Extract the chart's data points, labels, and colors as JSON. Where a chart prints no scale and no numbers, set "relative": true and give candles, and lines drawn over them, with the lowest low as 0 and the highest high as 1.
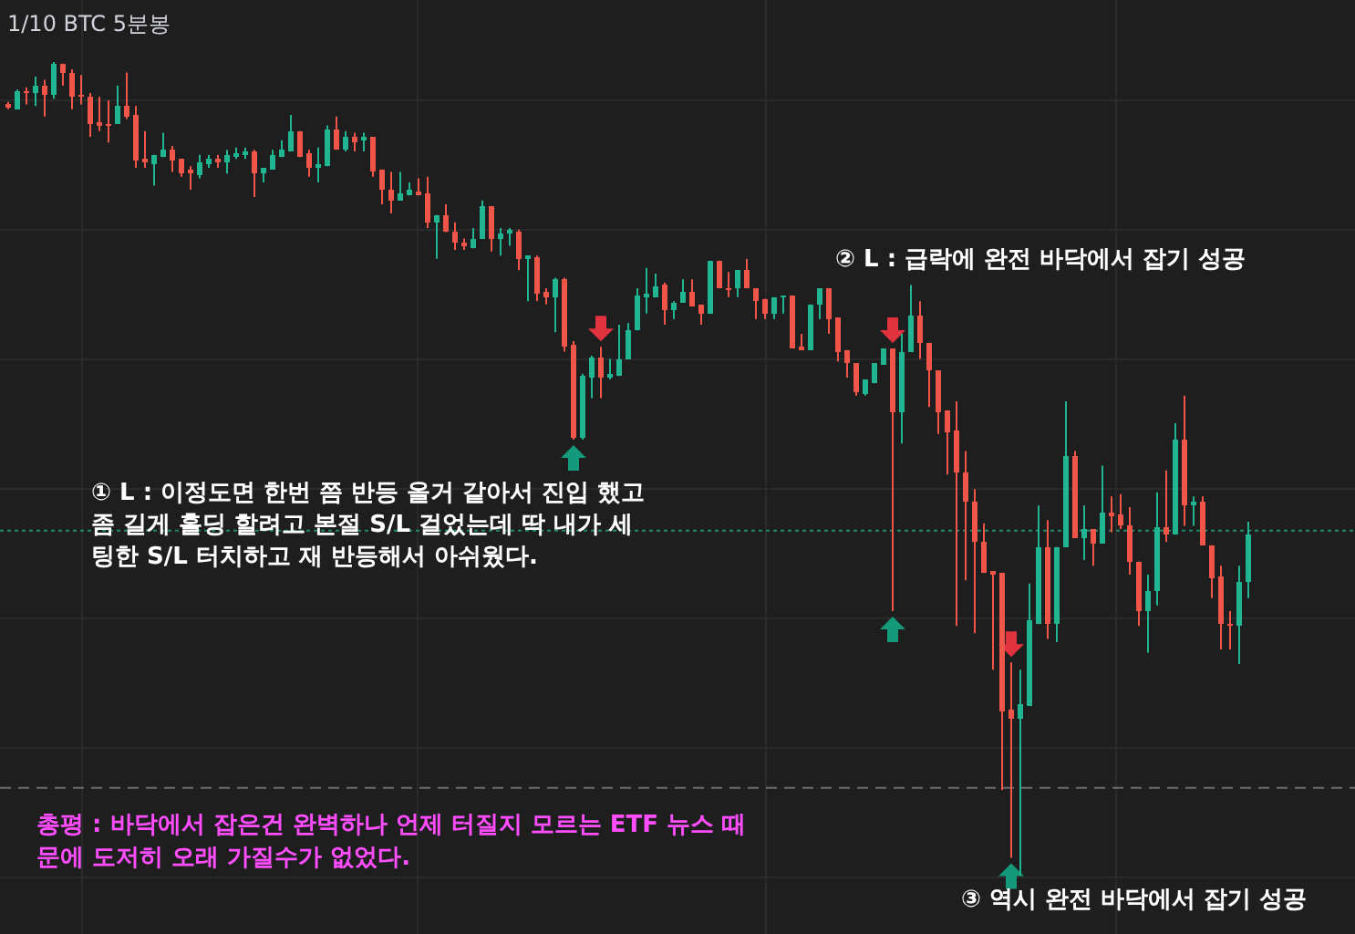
{
  "chart_data": {
    "type": "candlestick",
    "title": "1/10 BTC 5분봉",
    "relative": true,
    "grid": true,
    "annotations": [
      "② L : 급락에 완전 바닥에서 잡기 성공",
      "① L : 이정도면 한번 쯤 반등 올거 같아서 진입 했고\n좀 길게 홀딩 할려고 본절 S/L 걸었는데 딱 내가 세\n팅한 S/L 터치하고 재 반등해서 아쉬웠다.",
      "③ 역시 완전 바닥에서 잡기 성공",
      "총평 : 바닥에서 잡은건 완벽하나 언제 터질지 모르는 ETF 뉴스 때\n문에 도저히 오래 가질수가 없었다."
    ],
    "ref_lines": [
      {
        "axis": "y",
        "value": 0.424,
        "color": "#1e8a6e",
        "line_style": "dotted"
      },
      {
        "axis": "y",
        "value": 0.108,
        "color": "#6b6b6b",
        "line_style": "dashed"
      }
    ],
    "categories": [
      null,
      null,
      null,
      null,
      null,
      null,
      null,
      null,
      null,
      null,
      null,
      null,
      null,
      null,
      null,
      null,
      null,
      null,
      null,
      null,
      null,
      null,
      null,
      null,
      null,
      null,
      null,
      null,
      null,
      null,
      null,
      null,
      null,
      null,
      null,
      null,
      null,
      null,
      null,
      null,
      null,
      null,
      null,
      null,
      null,
      null,
      null,
      null,
      null,
      null,
      null,
      null,
      null,
      null,
      null,
      null,
      null,
      null,
      null,
      null,
      null,
      null,
      null,
      null,
      null,
      null,
      null,
      null,
      null,
      null,
      null,
      null,
      null,
      null,
      null,
      null,
      null,
      null,
      null,
      null,
      null,
      null,
      null,
      null,
      null,
      null,
      null,
      null,
      null,
      null,
      null,
      null,
      null,
      null,
      null,
      null,
      null,
      null,
      null,
      null,
      null,
      null,
      null,
      null,
      null,
      null,
      null,
      null,
      null,
      null,
      null,
      null,
      null,
      null,
      null,
      null,
      null,
      null,
      null,
      null,
      null,
      null,
      null,
      null,
      null,
      null,
      null,
      null,
      null,
      null,
      null,
      null,
      null,
      null,
      null,
      null,
      null
    ],
    "ohlc": [
      [
        0.948,
        0.951,
        0.942,
        0.944
      ],
      [
        0.942,
        0.966,
        0.942,
        0.964
      ],
      [
        0.964,
        0.969,
        0.948,
        0.962
      ],
      [
        0.962,
        0.982,
        0.946,
        0.971
      ],
      [
        0.971,
        0.978,
        0.933,
        0.96
      ],
      [
        0.96,
        1.0,
        0.955,
        0.998
      ],
      [
        0.998,
        0.998,
        0.971,
        0.987
      ],
      [
        0.987,
        0.991,
        0.942,
        0.957
      ],
      [
        0.96,
        0.984,
        0.948,
        0.957
      ],
      [
        0.957,
        0.962,
        0.908,
        0.924
      ],
      [
        0.926,
        0.957,
        0.915,
        0.922
      ],
      [
        0.924,
        0.953,
        0.901,
        0.922
      ],
      [
        0.924,
        0.971,
        0.924,
        0.946
      ],
      [
        0.946,
        0.987,
        0.93,
        0.933
      ],
      [
        0.935,
        0.946,
        0.87,
        0.879
      ],
      [
        0.881,
        0.915,
        0.87,
        0.877
      ],
      [
        0.874,
        0.886,
        0.848,
        0.886
      ],
      [
        0.883,
        0.913,
        0.883,
        0.892
      ],
      [
        0.892,
        0.897,
        0.865,
        0.879
      ],
      [
        0.881,
        0.881,
        0.859,
        0.863
      ],
      [
        0.868,
        0.872,
        0.843,
        0.863
      ],
      [
        0.861,
        0.886,
        0.857,
        0.877
      ],
      [
        0.874,
        0.886,
        0.87,
        0.881
      ],
      [
        0.881,
        0.886,
        0.87,
        0.877
      ],
      [
        0.877,
        0.892,
        0.863,
        0.886
      ],
      [
        0.883,
        0.895,
        0.881,
        0.888
      ],
      [
        0.886,
        0.895,
        0.881,
        0.89
      ],
      [
        0.89,
        0.892,
        0.834,
        0.863
      ],
      [
        0.863,
        0.87,
        0.852,
        0.87
      ],
      [
        0.868,
        0.892,
        0.868,
        0.886
      ],
      [
        0.883,
        0.904,
        0.883,
        0.892
      ],
      [
        0.89,
        0.935,
        0.89,
        0.915
      ],
      [
        0.915,
        0.915,
        0.883,
        0.883
      ],
      [
        0.888,
        0.892,
        0.859,
        0.87
      ],
      [
        0.87,
        0.895,
        0.852,
        0.874
      ],
      [
        0.872,
        0.922,
        0.872,
        0.917
      ],
      [
        0.917,
        0.933,
        0.892,
        0.892
      ],
      [
        0.892,
        0.915,
        0.89,
        0.908
      ],
      [
        0.908,
        0.913,
        0.89,
        0.901
      ],
      [
        0.904,
        0.913,
        0.89,
        0.908
      ],
      [
        0.908,
        0.908,
        0.859,
        0.865
      ],
      [
        0.868,
        0.868,
        0.825,
        0.843
      ],
      [
        0.843,
        0.865,
        0.814,
        0.83
      ],
      [
        0.83,
        0.865,
        0.83,
        0.839
      ],
      [
        0.836,
        0.852,
        0.836,
        0.843
      ],
      [
        0.841,
        0.857,
        0.836,
        0.836
      ],
      [
        0.839,
        0.859,
        0.796,
        0.803
      ],
      [
        0.803,
        0.812,
        0.758,
        0.812
      ],
      [
        0.812,
        0.825,
        0.791,
        0.791
      ],
      [
        0.791,
        0.803,
        0.769,
        0.778
      ],
      [
        0.778,
        0.783,
        0.769,
        0.774
      ],
      [
        0.771,
        0.796,
        0.771,
        0.783
      ],
      [
        0.783,
        0.83,
        0.783,
        0.823
      ],
      [
        0.823,
        0.823,
        0.767,
        0.783
      ],
      [
        0.783,
        0.796,
        0.762,
        0.789
      ],
      [
        0.789,
        0.796,
        0.774,
        0.794
      ],
      [
        0.791,
        0.794,
        0.744,
        0.758
      ],
      [
        0.758,
        0.762,
        0.706,
        0.762
      ],
      [
        0.76,
        0.762,
        0.706,
        0.715
      ],
      [
        0.717,
        0.722,
        0.702,
        0.711
      ],
      [
        0.711,
        0.735,
        0.668,
        0.733
      ],
      [
        0.733,
        0.735,
        0.644,
        0.65
      ],
      [
        0.652,
        0.657,
        0.536,
        0.538
      ],
      [
        0.538,
        0.617,
        0.536,
        0.614
      ],
      [
        0.612,
        0.639,
        0.587,
        0.637
      ],
      [
        0.637,
        0.65,
        0.587,
        0.612
      ],
      [
        0.612,
        0.635,
        0.61,
        0.617
      ],
      [
        0.614,
        0.677,
        0.614,
        0.635
      ],
      [
        0.635,
        0.679,
        0.635,
        0.67
      ],
      [
        0.67,
        0.722,
        0.67,
        0.713
      ],
      [
        0.711,
        0.747,
        0.691,
        0.715
      ],
      [
        0.711,
        0.74,
        0.711,
        0.724
      ],
      [
        0.726,
        0.729,
        0.677,
        0.695
      ],
      [
        0.695,
        0.706,
        0.684,
        0.704
      ],
      [
        0.704,
        0.733,
        0.704,
        0.717
      ],
      [
        0.717,
        0.733,
        0.7,
        0.7
      ],
      [
        0.702,
        0.702,
        0.677,
        0.691
      ],
      [
        0.691,
        0.756,
        0.691,
        0.756
      ],
      [
        0.756,
        0.756,
        0.722,
        0.722
      ],
      [
        0.722,
        0.742,
        0.711,
        0.72
      ],
      [
        0.722,
        0.744,
        0.711,
        0.744
      ],
      [
        0.744,
        0.758,
        0.722,
        0.722
      ],
      [
        0.722,
        0.722,
        0.684,
        0.706
      ],
      [
        0.709,
        0.709,
        0.684,
        0.691
      ],
      [
        0.691,
        0.711,
        0.684,
        0.711
      ],
      [
        0.711,
        0.713,
        0.691,
        0.713
      ],
      [
        0.713,
        0.713,
        0.648,
        0.648
      ],
      [
        0.65,
        0.666,
        0.646,
        0.646
      ],
      [
        0.646,
        0.702,
        0.646,
        0.702
      ],
      [
        0.702,
        0.722,
        0.684,
        0.722
      ],
      [
        0.722,
        0.722,
        0.666,
        0.684
      ],
      [
        0.686,
        0.686,
        0.632,
        0.644
      ],
      [
        0.646,
        0.646,
        0.612,
        0.63
      ],
      [
        0.63,
        0.63,
        0.59,
        0.594
      ],
      [
        0.592,
        0.61,
        0.59,
        0.61
      ],
      [
        0.605,
        0.63,
        0.605,
        0.63
      ],
      [
        0.628,
        0.648,
        0.628,
        0.648
      ],
      [
        0.648,
        0.648,
        0.325,
        0.57
      ],
      [
        0.57,
        0.666,
        0.531,
        0.644
      ],
      [
        0.644,
        0.726,
        0.644,
        0.688
      ],
      [
        0.688,
        0.706,
        0.635,
        0.655
      ],
      [
        0.655,
        0.655,
        0.576,
        0.621
      ],
      [
        0.621,
        0.621,
        0.543,
        0.57
      ],
      [
        0.572,
        0.572,
        0.493,
        0.545
      ],
      [
        0.547,
        0.583,
        0.307,
        0.496
      ],
      [
        0.496,
        0.522,
        0.363,
        0.46
      ],
      [
        0.46,
        0.475,
        0.298,
        0.41
      ],
      [
        0.41,
        0.433,
        0.372,
        0.372
      ],
      [
        0.374,
        0.374,
        0.253,
        0.37
      ],
      [
        0.372,
        0.372,
        0.105,
        0.202
      ],
      [
        0.204,
        0.262,
        0.022,
        0.193
      ],
      [
        0.193,
        0.253,
        0.0,
        0.211
      ],
      [
        0.209,
        0.359,
        0.209,
        0.314
      ],
      [
        0.309,
        0.455,
        0.309,
        0.404
      ],
      [
        0.404,
        0.437,
        0.291,
        0.309
      ],
      [
        0.309,
        0.404,
        0.287,
        0.404
      ],
      [
        0.404,
        0.583,
        0.404,
        0.516
      ],
      [
        0.516,
        0.522,
        0.415,
        0.415
      ],
      [
        0.415,
        0.455,
        0.388,
        0.426
      ],
      [
        0.426,
        0.426,
        0.381,
        0.408
      ],
      [
        0.408,
        0.504,
        0.408,
        0.446
      ],
      [
        0.446,
        0.466,
        0.422,
        0.442
      ],
      [
        0.444,
        0.469,
        0.426,
        0.43
      ],
      [
        0.43,
        0.453,
        0.37,
        0.386
      ],
      [
        0.386,
        0.386,
        0.307,
        0.325
      ],
      [
        0.325,
        0.37,
        0.274,
        0.35
      ],
      [
        0.35,
        0.471,
        0.332,
        0.428
      ],
      [
        0.428,
        0.498,
        0.41,
        0.419
      ],
      [
        0.419,
        0.556,
        0.419,
        0.536
      ],
      [
        0.536,
        0.59,
        0.43,
        0.455
      ],
      [
        0.455,
        0.466,
        0.43,
        0.46
      ],
      [
        0.46,
        0.466,
        0.406,
        0.406
      ],
      [
        0.406,
        0.406,
        0.341,
        0.365
      ],
      [
        0.368,
        0.381,
        0.278,
        0.309
      ],
      [
        0.309,
        0.325,
        0.278,
        0.307
      ],
      [
        0.307,
        0.381,
        0.26,
        0.361
      ],
      [
        0.361,
        0.435,
        0.341,
        0.419
      ]
    ]
  }
}
